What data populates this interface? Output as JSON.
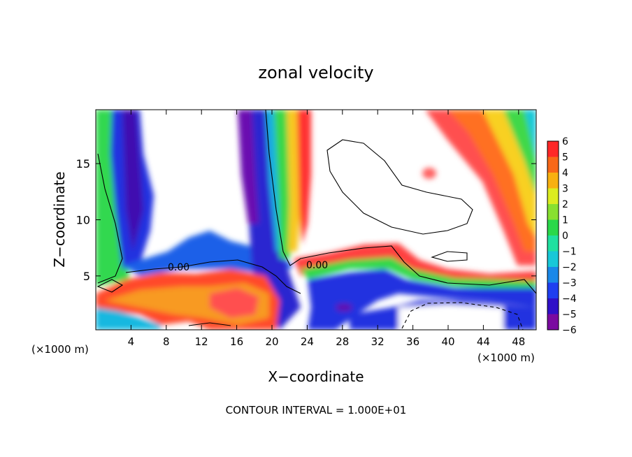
{
  "chart_data": {
    "type": "heatmap",
    "title": "zonal velocity",
    "xlabel": "X−coordinate",
    "ylabel": "Z−coordinate",
    "x_unit": "(×1000 m)",
    "xlim": [
      0,
      50
    ],
    "ylim": [
      0.2,
      19.8
    ],
    "x_ticks": [
      4,
      8,
      12,
      16,
      20,
      24,
      28,
      32,
      36,
      40,
      44,
      48
    ],
    "y_ticks": [
      5,
      10,
      15
    ],
    "colorbar": {
      "ticks": [
        "6",
        "5",
        "4",
        "3",
        "2",
        "1",
        "0",
        "−1",
        "−2",
        "−3",
        "−4",
        "−5",
        "−6"
      ],
      "min": -6,
      "max": 6,
      "colors": [
        "#7a0aa0",
        "#3010c8",
        "#1f3ef0",
        "#1a88e8",
        "#18c8d8",
        "#20e0a0",
        "#2ad84a",
        "#88e030",
        "#dcec20",
        "#f8b010",
        "#f86818",
        "#ff2828",
        "#ff8888"
      ]
    },
    "contour_labels": [
      {
        "text": "0.00",
        "x": 9,
        "z": 5.6
      },
      {
        "text": "0.00",
        "x": 24.8,
        "z": 5.8
      }
    ],
    "footnote": "CONTOUR INTERVAL = 1.000E+01"
  }
}
